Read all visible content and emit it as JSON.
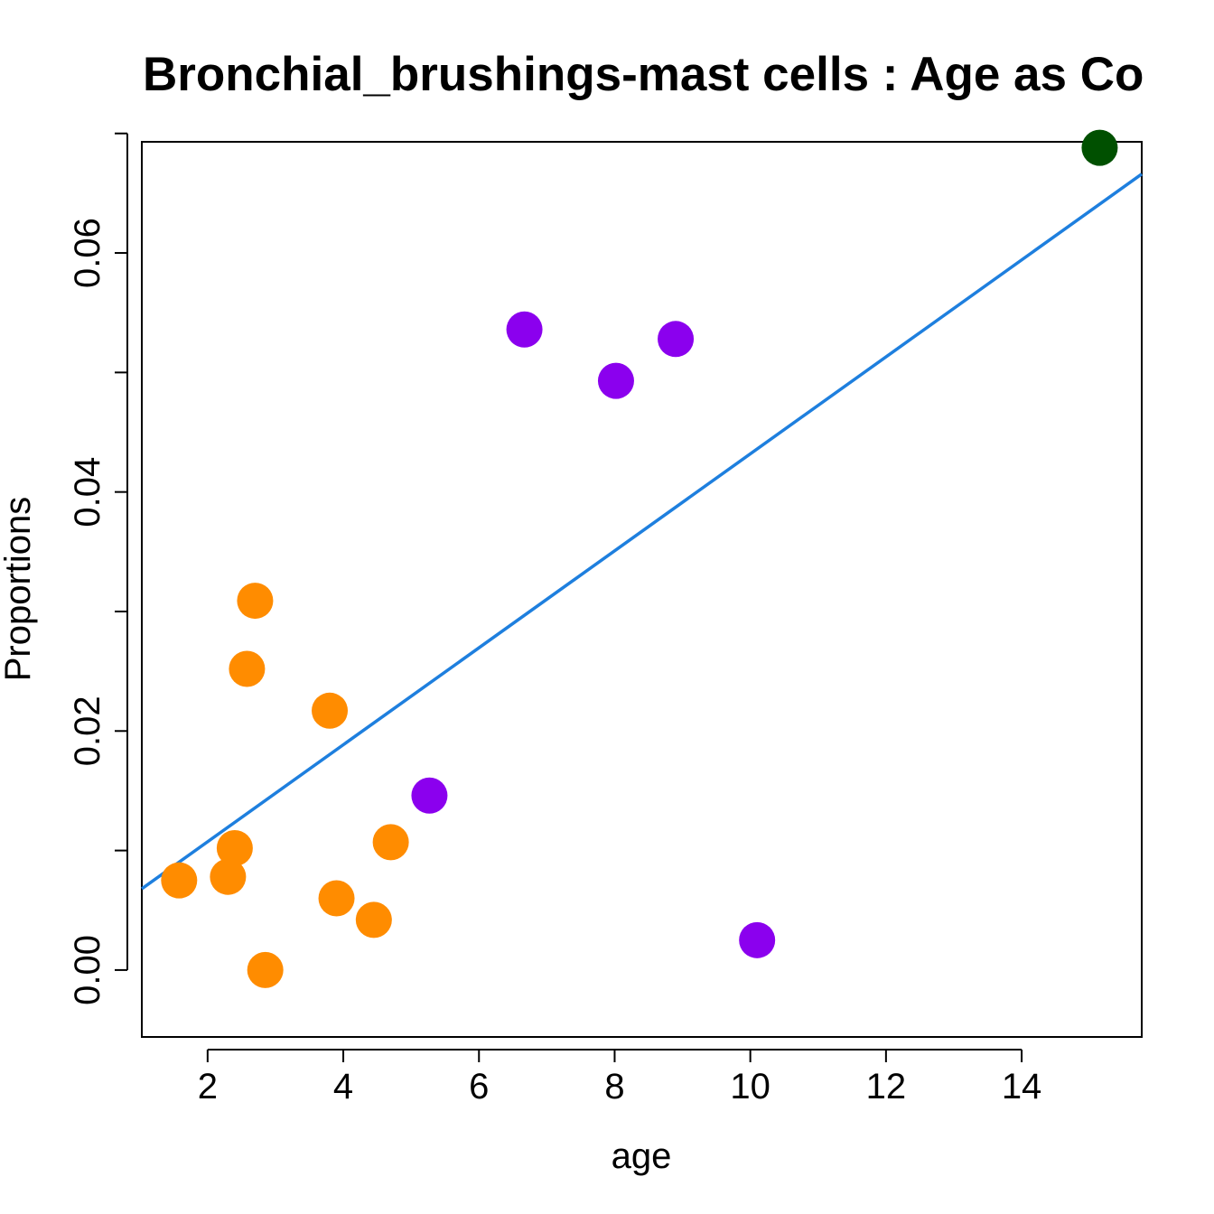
{
  "chart_data": {
    "type": "scatter",
    "title": "Bronchial_brushings-mast cells : Age as Co",
    "xlabel": "age",
    "ylabel": "Proportions",
    "xlim": [
      1.03,
      15.77
    ],
    "ylim": [
      -0.0056,
      0.0693
    ],
    "xticks": [
      2,
      4,
      6,
      8,
      10,
      12,
      14
    ],
    "xtick_labels": [
      "2",
      "4",
      "6",
      "8",
      "10",
      "12",
      "14"
    ],
    "yticks": [
      0.0,
      0.01,
      0.02,
      0.03,
      0.04,
      0.05,
      0.06,
      0.07
    ],
    "ytick_labels": [
      "0.00",
      "",
      "0.02",
      "",
      "0.04",
      "",
      "0.06",
      ""
    ],
    "series": [
      {
        "name": "orange group",
        "color": "#FF8C00",
        "points": [
          {
            "x": 1.58,
            "y": 0.0075
          },
          {
            "x": 2.3,
            "y": 0.0078
          },
          {
            "x": 2.4,
            "y": 0.0102
          },
          {
            "x": 2.58,
            "y": 0.0252
          },
          {
            "x": 2.7,
            "y": 0.0309
          },
          {
            "x": 2.85,
            "y": 0.0
          },
          {
            "x": 3.8,
            "y": 0.0217
          },
          {
            "x": 3.9,
            "y": 0.006
          },
          {
            "x": 4.45,
            "y": 0.0042
          },
          {
            "x": 4.7,
            "y": 0.0107
          }
        ]
      },
      {
        "name": "purple group",
        "color": "#8B00EE",
        "points": [
          {
            "x": 5.27,
            "y": 0.0146
          },
          {
            "x": 6.67,
            "y": 0.0536
          },
          {
            "x": 8.02,
            "y": 0.0493
          },
          {
            "x": 8.9,
            "y": 0.0528
          },
          {
            "x": 10.1,
            "y": 0.0025
          }
        ]
      },
      {
        "name": "green group",
        "color": "#005000",
        "points": [
          {
            "x": 15.15,
            "y": 0.0688
          }
        ]
      }
    ],
    "fit_line": {
      "color": "#1E7FDE",
      "x": [
        1.03,
        15.77
      ],
      "y": [
        0.0068,
        0.0666
      ]
    }
  }
}
